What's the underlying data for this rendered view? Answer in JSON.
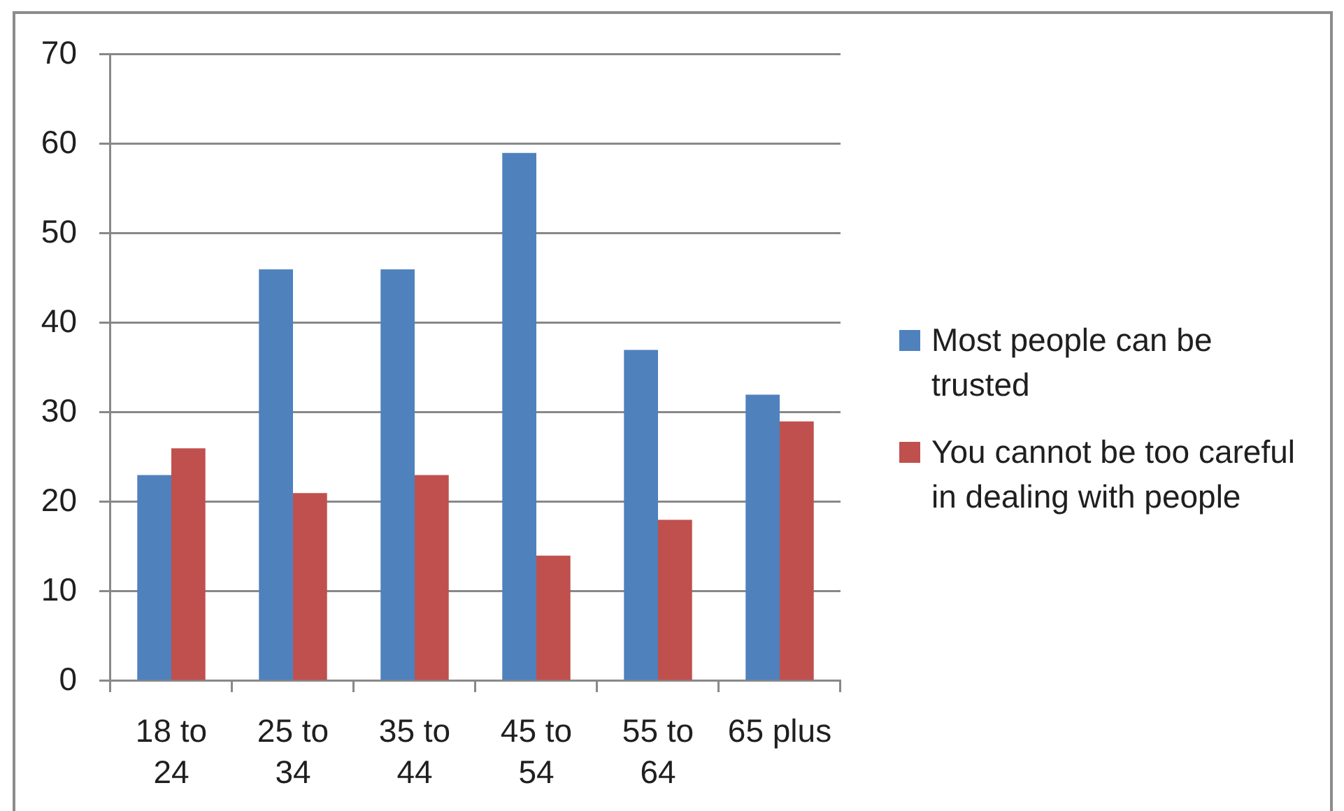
{
  "chart_data": {
    "type": "bar",
    "categories": [
      "18 to 24",
      "25 to 34",
      "35 to 44",
      "45 to 54",
      "55 to 64",
      "65 plus"
    ],
    "series": [
      {
        "name": "Most people can be trusted",
        "color": "#4f81bd",
        "values": [
          23,
          46,
          46,
          59,
          37,
          32
        ]
      },
      {
        "name": "You cannot be too careful in dealing with people",
        "color": "#c0504d",
        "values": [
          26,
          21,
          23,
          14,
          18,
          29
        ]
      }
    ],
    "ylim": [
      0,
      70
    ],
    "yticks": [
      0,
      10,
      20,
      30,
      40,
      50,
      60,
      70
    ],
    "grid": "y",
    "legend": "right"
  }
}
